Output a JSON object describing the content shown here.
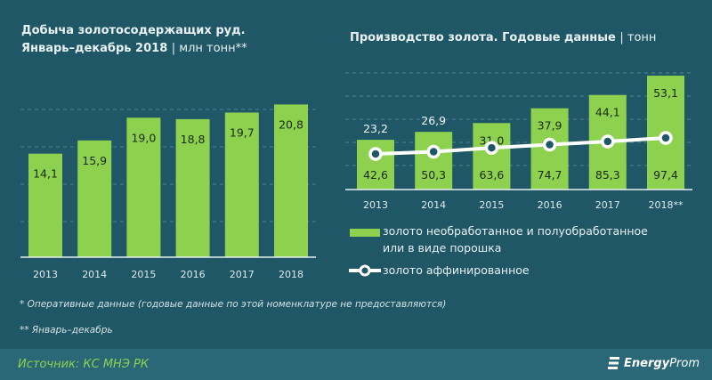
{
  "colors": {
    "background": "#1f5767",
    "bar": "#8dd14f",
    "line": "#ffffff",
    "footer": "#2a6878"
  },
  "chart_data": [
    {
      "type": "bar",
      "title": "Добыча золотосодержащих руд.",
      "subtitle": "Январь–декабрь  2018",
      "unit": "млн тонн**",
      "categories": [
        "2013",
        "2014",
        "2015",
        "2016",
        "2017",
        "2018"
      ],
      "values": [
        14.1,
        15.9,
        19.0,
        18.8,
        19.7,
        20.8
      ],
      "labels": [
        "14,1",
        "15,9",
        "19,0",
        "18,8",
        "19,7",
        "20,8"
      ],
      "ylim": [
        0,
        25
      ],
      "grid": true
    },
    {
      "type": "bar+line",
      "title": "Производство  золота. Годовые данные",
      "unit": "тонн",
      "categories": [
        "2013",
        "2014",
        "2015",
        "2016",
        "2017",
        "2018**"
      ],
      "series": [
        {
          "name": "золото необработанное и полуобработанное или  в виде порошка",
          "type": "bar",
          "values": [
            23.2,
            26.9,
            31.0,
            37.9,
            44.1,
            53.1
          ],
          "labels": [
            "23,2",
            "26,9",
            "31,0",
            "37,9",
            "44,1",
            "53,1"
          ]
        },
        {
          "name": "золото аффинированное",
          "type": "line",
          "values": [
            42.6,
            50.3,
            63.6,
            74.7,
            85.3,
            97.4
          ],
          "labels": [
            "42,6",
            "50,3",
            "63,6",
            "74,7",
            "85,3",
            "97,4"
          ]
        }
      ],
      "legend": "bottom",
      "grid": true
    }
  ],
  "left": {
    "title": "Добыча  золотосодержащих  руд.",
    "subtitle": "Январь–декабрь   2018",
    "unit": "| млн тонн**"
  },
  "right": {
    "title": "Производство  золота. Годовые данные",
    "unit": "|  тонн",
    "legend_bar_1": "золото необработанное и полуобработанное",
    "legend_bar_2": "или  в виде порошка",
    "legend_line": "золото аффинированное"
  },
  "notes": [
    "* Оперативные данные (годовые данные по этой номенклатуре не предоставляются)",
    "** Январь–декабрь"
  ],
  "source": "Источник: КС МНЭ РК",
  "logo": {
    "icon": "energyprom-logo-icon",
    "text_bold": "Energy",
    "text": "Prom"
  }
}
